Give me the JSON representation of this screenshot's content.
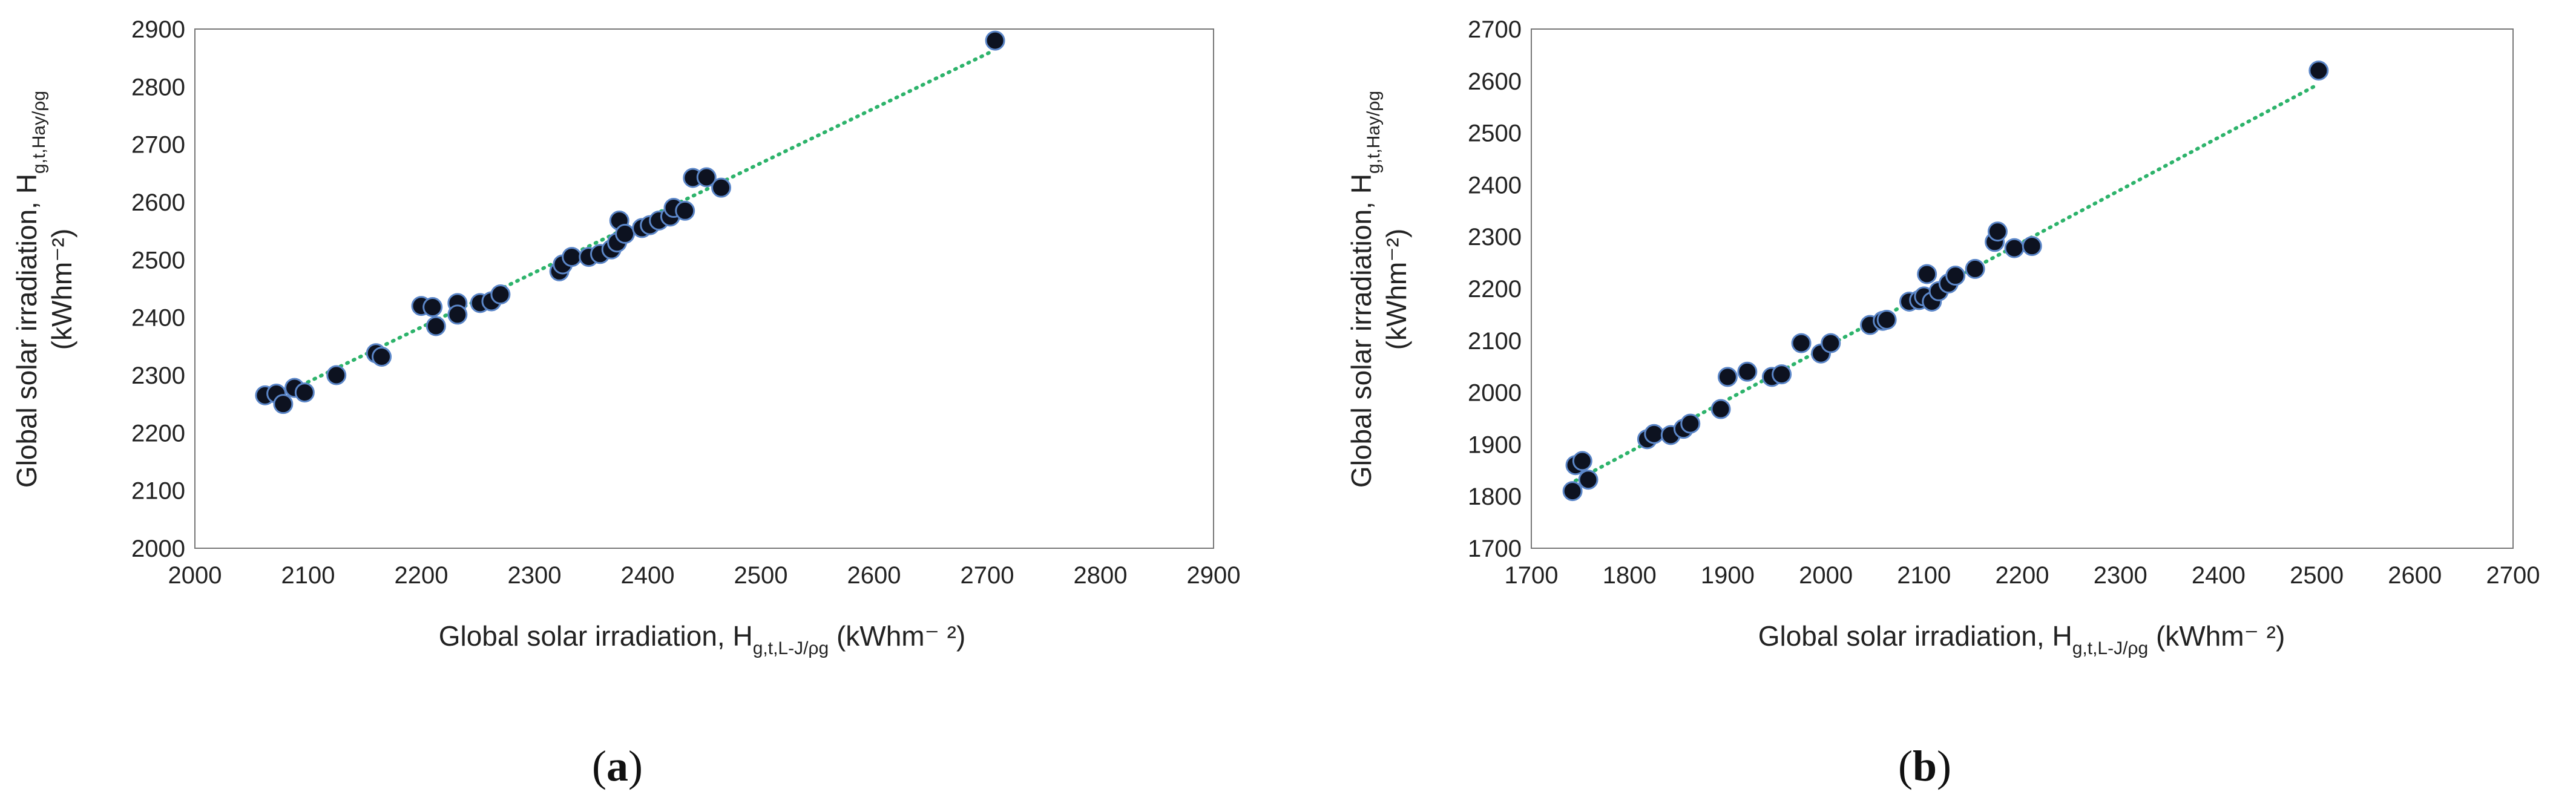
{
  "chart_data": [
    {
      "type": "scatter",
      "panel_label": "a",
      "xlabel_main": "Global solar irradiation, H",
      "xlabel_sub": "g,t,L-J/ρg",
      "xlabel_unit": " (kWhm⁻ ²)",
      "ylabel_main": "Global solar irradiation, H",
      "ylabel_sub": "g,t,Hay/ρg",
      "ylabel_unit": "(kWhm⁻²)",
      "xlim": [
        2000,
        2900
      ],
      "ylim": [
        2000,
        2900
      ],
      "xticks": [
        2000,
        2100,
        2200,
        2300,
        2400,
        2500,
        2600,
        2700,
        2800,
        2900
      ],
      "yticks": [
        2000,
        2100,
        2200,
        2300,
        2400,
        2500,
        2600,
        2700,
        2800,
        2900
      ],
      "trendline": {
        "style": "dotted",
        "color": "#2db36b",
        "from": [
          2065,
          2255
        ],
        "to": [
          2705,
          2862
        ]
      },
      "marker_color": "#0d1220",
      "marker_edge": "#5b86c8",
      "points": [
        [
          2062,
          2265
        ],
        [
          2072,
          2268
        ],
        [
          2078,
          2250
        ],
        [
          2088,
          2278
        ],
        [
          2097,
          2270
        ],
        [
          2125,
          2300
        ],
        [
          2160,
          2338
        ],
        [
          2165,
          2332
        ],
        [
          2200,
          2420
        ],
        [
          2210,
          2418
        ],
        [
          2213,
          2385
        ],
        [
          2232,
          2425
        ],
        [
          2232,
          2405
        ],
        [
          2252,
          2425
        ],
        [
          2262,
          2428
        ],
        [
          2270,
          2440
        ],
        [
          2322,
          2480
        ],
        [
          2325,
          2492
        ],
        [
          2333,
          2505
        ],
        [
          2348,
          2505
        ],
        [
          2358,
          2510
        ],
        [
          2368,
          2518
        ],
        [
          2373,
          2530
        ],
        [
          2375,
          2568
        ],
        [
          2380,
          2545
        ],
        [
          2395,
          2555
        ],
        [
          2402,
          2560
        ],
        [
          2410,
          2568
        ],
        [
          2420,
          2575
        ],
        [
          2423,
          2590
        ],
        [
          2433,
          2585
        ],
        [
          2440,
          2642
        ],
        [
          2452,
          2643
        ],
        [
          2465,
          2625
        ],
        [
          2707,
          2880
        ]
      ]
    },
    {
      "type": "scatter",
      "panel_label": "b",
      "xlabel_main": "Global solar irradiation, H",
      "xlabel_sub": "g,t,L-J/ρg",
      "xlabel_unit": " (kWhm⁻ ²)",
      "ylabel_main": "Global solar irradiation, H",
      "ylabel_sub": "g,t,Hay/ρg",
      "ylabel_unit": "(kWhm⁻²)",
      "xlim": [
        1700,
        2700
      ],
      "ylim": [
        1700,
        2700
      ],
      "xticks": [
        1700,
        1800,
        1900,
        2000,
        2100,
        2200,
        2300,
        2400,
        2500,
        2600,
        2700
      ],
      "yticks": [
        1700,
        1800,
        1900,
        2000,
        2100,
        2200,
        2300,
        2400,
        2500,
        2600,
        2700
      ],
      "trendline": {
        "style": "dotted",
        "color": "#2db36b",
        "from": [
          1745,
          1830
        ],
        "to": [
          2500,
          2592
        ]
      },
      "marker_color": "#0d1220",
      "marker_edge": "#5b86c8",
      "points": [
        [
          1742,
          1810
        ],
        [
          1745,
          1860
        ],
        [
          1752,
          1868
        ],
        [
          1758,
          1832
        ],
        [
          1818,
          1910
        ],
        [
          1825,
          1920
        ],
        [
          1842,
          1918
        ],
        [
          1855,
          1930
        ],
        [
          1862,
          1940
        ],
        [
          1893,
          1968
        ],
        [
          1900,
          2030
        ],
        [
          1920,
          2040
        ],
        [
          1945,
          2030
        ],
        [
          1955,
          2035
        ],
        [
          1975,
          2095
        ],
        [
          1995,
          2075
        ],
        [
          2005,
          2095
        ],
        [
          2045,
          2130
        ],
        [
          2058,
          2138
        ],
        [
          2062,
          2140
        ],
        [
          2085,
          2175
        ],
        [
          2095,
          2178
        ],
        [
          2100,
          2185
        ],
        [
          2103,
          2228
        ],
        [
          2108,
          2175
        ],
        [
          2115,
          2195
        ],
        [
          2125,
          2210
        ],
        [
          2132,
          2225
        ],
        [
          2152,
          2238
        ],
        [
          2172,
          2290
        ],
        [
          2175,
          2310
        ],
        [
          2192,
          2278
        ],
        [
          2210,
          2282
        ],
        [
          2502,
          2620
        ]
      ]
    }
  ]
}
